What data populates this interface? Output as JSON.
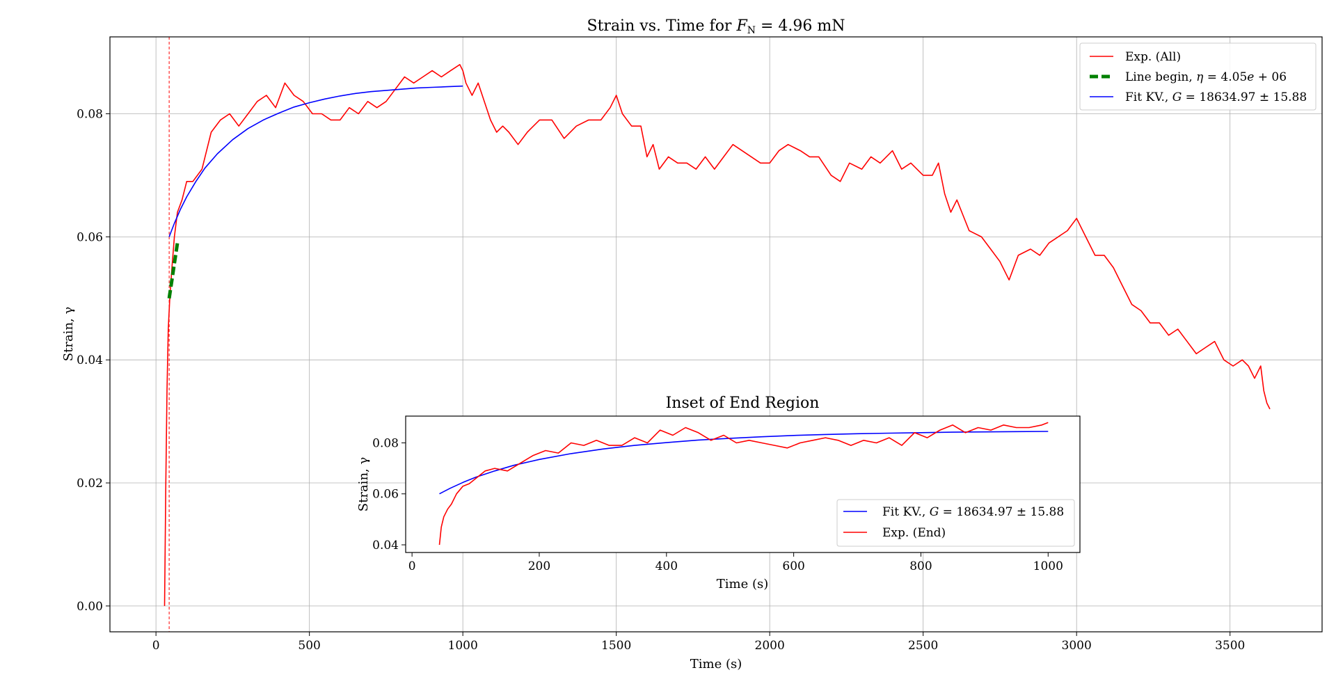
{
  "chart_data": [
    {
      "type": "line",
      "title": "Strain vs. Time for F_N = 4.96 mN",
      "title_parts": {
        "pre": "Strain vs. Time for ",
        "var": "F",
        "sub": "N",
        "post": " = 4.96 mN"
      },
      "xlabel": "Time (s)",
      "ylabel": "Strain, γ",
      "xlim": [
        -150,
        3800
      ],
      "ylim": [
        -0.0042,
        0.0925
      ],
      "xticks": [
        0,
        500,
        1000,
        1500,
        2000,
        2500,
        3000,
        3500
      ],
      "yticks": [
        0.0,
        0.02,
        0.04,
        0.06,
        0.08
      ],
      "xtick_labels": [
        "0",
        "500",
        "1000",
        "1500",
        "2000",
        "2500",
        "3000",
        "3500"
      ],
      "ytick_labels": [
        "0.00",
        "0.02",
        "0.04",
        "0.06",
        "0.08"
      ],
      "grid": true,
      "legend_position": "top-right",
      "vline": {
        "x": 43,
        "color": "#ff0000",
        "style": "dotted"
      },
      "series": [
        {
          "name": "Exp. (All)",
          "color": "#ff0000",
          "style": "solid",
          "x": [
            28,
            32,
            36,
            40,
            45,
            52,
            60,
            70,
            85,
            100,
            120,
            150,
            180,
            210,
            240,
            270,
            300,
            330,
            360,
            390,
            420,
            450,
            480,
            510,
            540,
            570,
            600,
            630,
            660,
            690,
            720,
            750,
            780,
            810,
            840,
            870,
            900,
            930,
            960,
            990,
            1000,
            1010,
            1030,
            1050,
            1070,
            1090,
            1110,
            1130,
            1150,
            1180,
            1210,
            1250,
            1290,
            1330,
            1370,
            1410,
            1450,
            1480,
            1500,
            1520,
            1550,
            1580,
            1600,
            1620,
            1640,
            1670,
            1700,
            1730,
            1760,
            1790,
            1820,
            1850,
            1880,
            1910,
            1940,
            1970,
            2000,
            2030,
            2060,
            2100,
            2130,
            2160,
            2200,
            2230,
            2260,
            2300,
            2330,
            2360,
            2400,
            2430,
            2460,
            2500,
            2530,
            2550,
            2570,
            2590,
            2610,
            2650,
            2690,
            2720,
            2750,
            2780,
            2810,
            2850,
            2880,
            2910,
            2940,
            2970,
            3000,
            3030,
            3060,
            3090,
            3120,
            3150,
            3180,
            3210,
            3240,
            3270,
            3300,
            3330,
            3360,
            3390,
            3420,
            3450,
            3480,
            3510,
            3540,
            3560,
            3580,
            3600,
            3610,
            3620,
            3630
          ],
          "y": [
            0.0,
            0.02,
            0.035,
            0.045,
            0.05,
            0.055,
            0.06,
            0.064,
            0.066,
            0.069,
            0.069,
            0.071,
            0.077,
            0.079,
            0.08,
            0.078,
            0.08,
            0.082,
            0.083,
            0.081,
            0.085,
            0.083,
            0.082,
            0.08,
            0.08,
            0.079,
            0.079,
            0.081,
            0.08,
            0.082,
            0.081,
            0.082,
            0.084,
            0.086,
            0.085,
            0.086,
            0.087,
            0.086,
            0.087,
            0.088,
            0.087,
            0.085,
            0.083,
            0.085,
            0.082,
            0.079,
            0.077,
            0.078,
            0.077,
            0.075,
            0.077,
            0.079,
            0.079,
            0.076,
            0.078,
            0.079,
            0.079,
            0.081,
            0.083,
            0.08,
            0.078,
            0.078,
            0.073,
            0.075,
            0.071,
            0.073,
            0.072,
            0.072,
            0.071,
            0.073,
            0.071,
            0.073,
            0.075,
            0.074,
            0.073,
            0.072,
            0.072,
            0.074,
            0.075,
            0.074,
            0.073,
            0.073,
            0.07,
            0.069,
            0.072,
            0.071,
            0.073,
            0.072,
            0.074,
            0.071,
            0.072,
            0.07,
            0.07,
            0.072,
            0.067,
            0.064,
            0.066,
            0.061,
            0.06,
            0.058,
            0.056,
            0.053,
            0.057,
            0.058,
            0.057,
            0.059,
            0.06,
            0.061,
            0.063,
            0.06,
            0.057,
            0.057,
            0.055,
            0.052,
            0.049,
            0.048,
            0.046,
            0.046,
            0.044,
            0.045,
            0.043,
            0.041,
            0.042,
            0.043,
            0.04,
            0.039,
            0.04,
            0.039,
            0.037,
            0.039,
            0.035,
            0.033,
            0.032
          ]
        },
        {
          "name": "Line begin, η = 4.05e + 06",
          "name_parts": {
            "pre": "Line begin, ",
            "var": "η",
            "post": " = 4.05",
            "var2": "e",
            "post2": " + 06"
          },
          "color": "#008000",
          "style": "dashed",
          "x": [
            43,
            70
          ],
          "y": [
            0.05,
            0.059
          ]
        },
        {
          "name": "Fit KV., G = 18634.97 ± 15.88",
          "name_parts": {
            "pre": "Fit KV., ",
            "var": "G",
            "post": " = 18634.97 ± 15.88"
          },
          "color": "#0000ff",
          "style": "solid",
          "x": [
            43,
            60,
            80,
            100,
            130,
            160,
            200,
            250,
            300,
            350,
            400,
            450,
            500,
            550,
            600,
            650,
            700,
            750,
            800,
            850,
            900,
            950,
            1000
          ],
          "y": [
            0.06,
            0.0622,
            0.0645,
            0.0665,
            0.069,
            0.0712,
            0.0735,
            0.0758,
            0.0776,
            0.079,
            0.0801,
            0.0811,
            0.0818,
            0.0824,
            0.0829,
            0.0833,
            0.0836,
            0.0838,
            0.084,
            0.0842,
            0.0843,
            0.0844,
            0.0845
          ]
        }
      ]
    },
    {
      "type": "line",
      "title": "Inset of End Region",
      "xlabel": "Time (s)",
      "ylabel": "Strain, γ",
      "xlim": [
        -10,
        1050
      ],
      "ylim": [
        0.037,
        0.0905
      ],
      "xticks": [
        0,
        200,
        400,
        600,
        800,
        1000
      ],
      "yticks": [
        0.04,
        0.06,
        0.08
      ],
      "xtick_labels": [
        "0",
        "200",
        "400",
        "600",
        "800",
        "1000"
      ],
      "ytick_labels": [
        "0.04",
        "0.06",
        "0.08"
      ],
      "grid": false,
      "legend_position": "bottom-right",
      "series": [
        {
          "name": "Fit KV., G = 18634.97 ± 15.88",
          "name_parts": {
            "pre": "Fit KV., ",
            "var": "G",
            "post": " = 18634.97 ± 15.88"
          },
          "color": "#0000ff",
          "style": "solid",
          "x": [
            43,
            60,
            80,
            100,
            130,
            160,
            200,
            250,
            300,
            350,
            400,
            450,
            500,
            550,
            600,
            650,
            700,
            750,
            800,
            850,
            900,
            950,
            1000
          ],
          "y": [
            0.06,
            0.0622,
            0.0645,
            0.0665,
            0.069,
            0.0712,
            0.0735,
            0.0758,
            0.0776,
            0.079,
            0.0801,
            0.0811,
            0.0818,
            0.0824,
            0.0829,
            0.0833,
            0.0836,
            0.0838,
            0.084,
            0.0842,
            0.0843,
            0.0844,
            0.0845
          ]
        },
        {
          "name": "Exp. (End)",
          "color": "#ff0000",
          "style": "solid",
          "x": [
            43,
            46,
            50,
            56,
            62,
            70,
            80,
            90,
            100,
            115,
            130,
            150,
            170,
            190,
            210,
            230,
            250,
            270,
            290,
            310,
            330,
            350,
            370,
            390,
            410,
            430,
            450,
            470,
            490,
            510,
            530,
            550,
            570,
            590,
            610,
            630,
            650,
            670,
            690,
            710,
            730,
            750,
            770,
            790,
            810,
            830,
            850,
            870,
            890,
            910,
            930,
            950,
            970,
            990,
            1000
          ],
          "y": [
            0.04,
            0.047,
            0.051,
            0.054,
            0.056,
            0.06,
            0.063,
            0.064,
            0.066,
            0.069,
            0.07,
            0.069,
            0.072,
            0.075,
            0.077,
            0.076,
            0.08,
            0.079,
            0.081,
            0.079,
            0.079,
            0.082,
            0.08,
            0.085,
            0.083,
            0.086,
            0.084,
            0.081,
            0.083,
            0.08,
            0.081,
            0.08,
            0.079,
            0.078,
            0.08,
            0.081,
            0.082,
            0.081,
            0.079,
            0.081,
            0.08,
            0.082,
            0.079,
            0.084,
            0.082,
            0.085,
            0.087,
            0.084,
            0.086,
            0.085,
            0.087,
            0.086,
            0.086,
            0.087,
            0.088
          ]
        }
      ]
    }
  ]
}
